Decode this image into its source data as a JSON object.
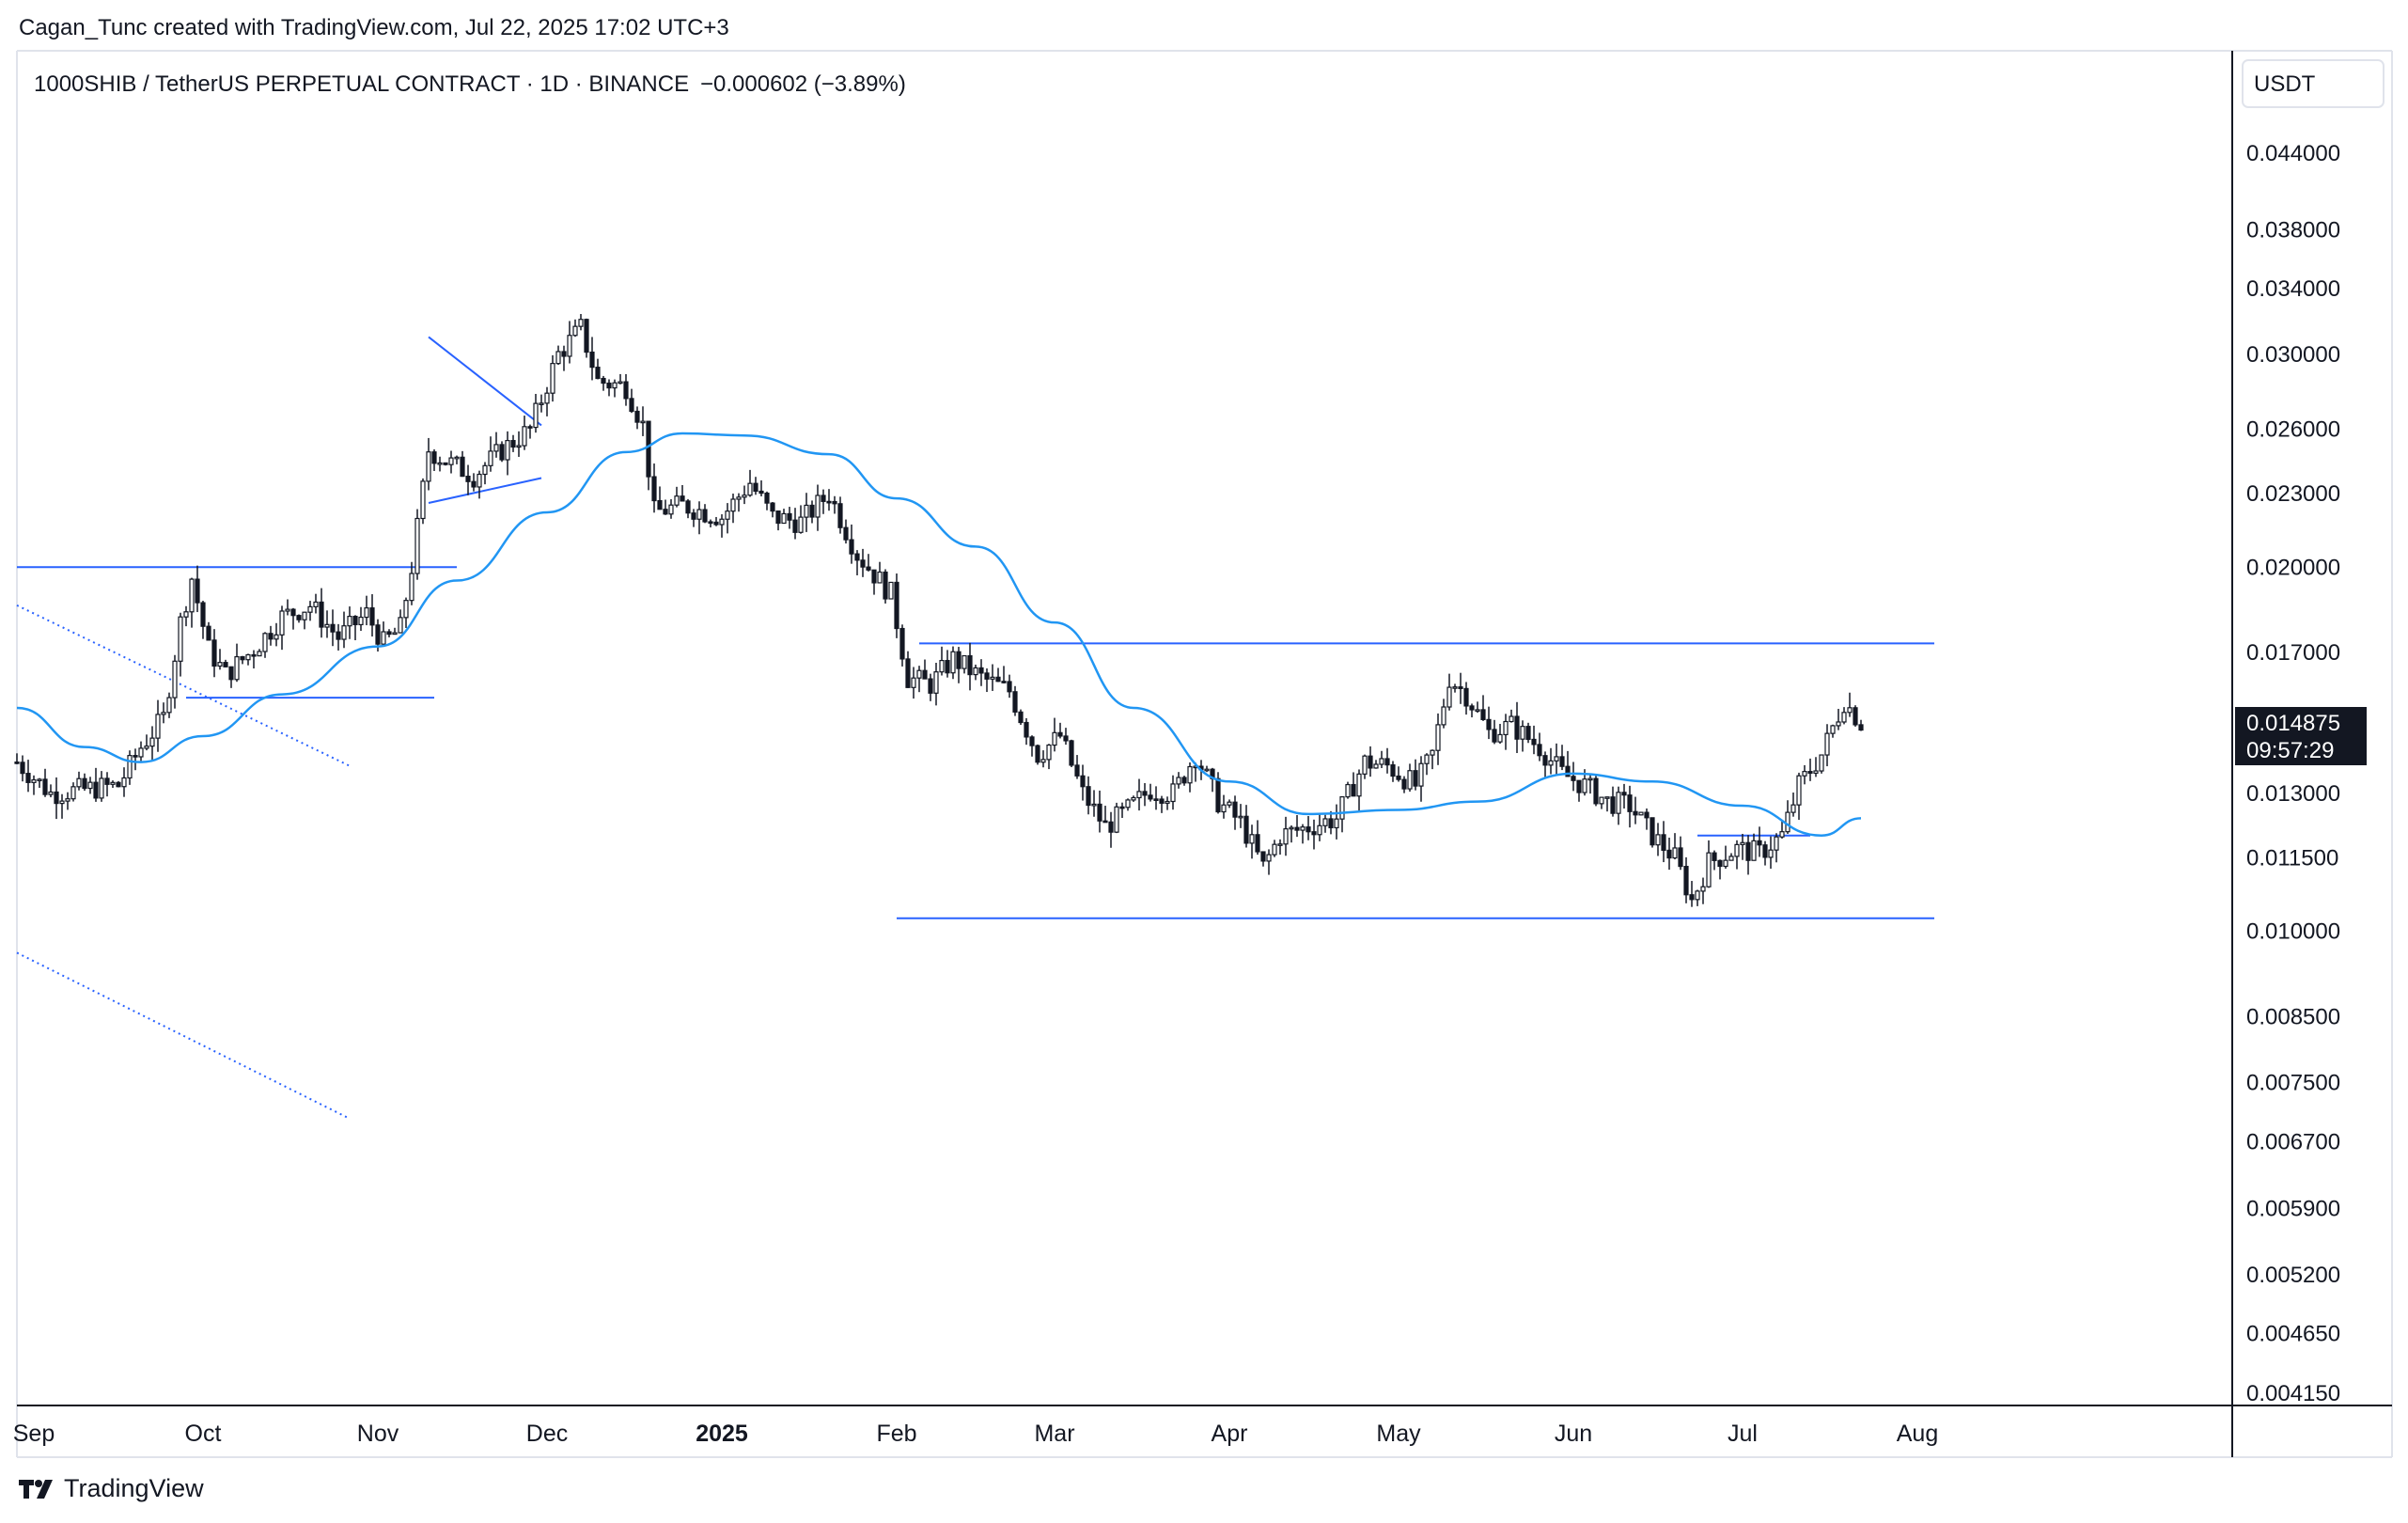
{
  "header": {
    "credit": "Cagan_Tunc created with TradingView.com, Jul 22, 2025 17:02 UTC+3"
  },
  "legend": {
    "symbol": "1000SHIB / TetherUS PERPETUAL CONTRACT · 1D · BINANCE",
    "change": "−0.000602 (−3.89%)"
  },
  "price_axis": {
    "currency": "USDT",
    "last_price": "0.014875",
    "countdown": "09:57:29"
  },
  "footer": {
    "brand": "TradingView",
    "logo_icon": "tradingview-logo-icon"
  },
  "colors": {
    "line": "#2962ff",
    "ma": "#2196f3",
    "candle": "#131722",
    "axis": "#131722"
  },
  "chart_data": {
    "type": "candlestick",
    "scale": "log",
    "interval": "1D",
    "ylim": [
      0.00415,
      0.0475
    ],
    "y_ticks": [
      "0.044000",
      "0.038000",
      "0.034000",
      "0.030000",
      "0.026000",
      "0.023000",
      "0.020000",
      "0.017000",
      "0.013000",
      "0.011500",
      "0.010000",
      "0.008500",
      "0.007500",
      "0.006700",
      "0.005900",
      "0.005200",
      "0.004650",
      "0.004150"
    ],
    "x_ticks": [
      {
        "label": "Sep",
        "date": "2024-09-01"
      },
      {
        "label": "Oct",
        "date": "2024-10-01"
      },
      {
        "label": "Nov",
        "date": "2024-11-01"
      },
      {
        "label": "Dec",
        "date": "2024-12-01"
      },
      {
        "label": "2025",
        "date": "2025-01-01",
        "bold": true
      },
      {
        "label": "Feb",
        "date": "2025-02-01"
      },
      {
        "label": "Mar",
        "date": "2025-03-01"
      },
      {
        "label": "Apr",
        "date": "2025-04-01"
      },
      {
        "label": "May",
        "date": "2025-05-01"
      },
      {
        "label": "Jun",
        "date": "2025-06-01"
      },
      {
        "label": "Jul",
        "date": "2025-07-01"
      },
      {
        "label": "Aug",
        "date": "2025-08-01"
      }
    ],
    "price_anchors": [
      [
        "2024-08-29",
        0.0138
      ],
      [
        "2024-09-04",
        0.013
      ],
      [
        "2024-09-10",
        0.0131
      ],
      [
        "2024-09-16",
        0.0132
      ],
      [
        "2024-09-20",
        0.0142
      ],
      [
        "2024-09-24",
        0.015
      ],
      [
        "2024-09-27",
        0.018
      ],
      [
        "2024-09-29",
        0.0196
      ],
      [
        "2024-10-02",
        0.0171
      ],
      [
        "2024-10-05",
        0.0163
      ],
      [
        "2024-10-10",
        0.0171
      ],
      [
        "2024-10-15",
        0.0182
      ],
      [
        "2024-10-20",
        0.0186
      ],
      [
        "2024-10-25",
        0.0175
      ],
      [
        "2024-10-30",
        0.0183
      ],
      [
        "2024-11-02",
        0.0173
      ],
      [
        "2024-11-05",
        0.0178
      ],
      [
        "2024-11-07",
        0.02
      ],
      [
        "2024-11-10",
        0.025
      ],
      [
        "2024-11-13",
        0.0245
      ],
      [
        "2024-11-18",
        0.0238
      ],
      [
        "2024-11-23",
        0.025
      ],
      [
        "2024-11-28",
        0.026
      ],
      [
        "2024-12-03",
        0.03
      ],
      [
        "2024-12-07",
        0.0315
      ],
      [
        "2024-12-10",
        0.0285
      ],
      [
        "2024-12-15",
        0.0282
      ],
      [
        "2024-12-18",
        0.0262
      ],
      [
        "2024-12-20",
        0.0222
      ],
      [
        "2024-12-25",
        0.0225
      ],
      [
        "2025-01-01",
        0.022
      ],
      [
        "2025-01-06",
        0.0235
      ],
      [
        "2025-01-10",
        0.022
      ],
      [
        "2025-01-15",
        0.0218
      ],
      [
        "2025-01-20",
        0.023
      ],
      [
        "2025-01-25",
        0.0205
      ],
      [
        "2025-01-31",
        0.019
      ],
      [
        "2025-02-03",
        0.0162
      ],
      [
        "2025-02-07",
        0.016
      ],
      [
        "2025-02-11",
        0.0168
      ],
      [
        "2025-02-16",
        0.0162
      ],
      [
        "2025-02-21",
        0.0158
      ],
      [
        "2025-02-26",
        0.014
      ],
      [
        "2025-03-02",
        0.0145
      ],
      [
        "2025-03-06",
        0.013
      ],
      [
        "2025-03-10",
        0.0122
      ],
      [
        "2025-03-14",
        0.0126
      ],
      [
        "2025-03-18",
        0.0131
      ],
      [
        "2025-03-22",
        0.013
      ],
      [
        "2025-03-26",
        0.014
      ],
      [
        "2025-03-30",
        0.0128
      ],
      [
        "2025-04-03",
        0.0123
      ],
      [
        "2025-04-07",
        0.0113
      ],
      [
        "2025-04-10",
        0.012
      ],
      [
        "2025-04-15",
        0.0122
      ],
      [
        "2025-04-20",
        0.0124
      ],
      [
        "2025-04-25",
        0.0138
      ],
      [
        "2025-04-29",
        0.0137
      ],
      [
        "2025-05-04",
        0.0132
      ],
      [
        "2025-05-07",
        0.014
      ],
      [
        "2025-05-10",
        0.0162
      ],
      [
        "2025-05-13",
        0.0157
      ],
      [
        "2025-05-17",
        0.0146
      ],
      [
        "2025-05-21",
        0.0148
      ],
      [
        "2025-05-26",
        0.0142
      ],
      [
        "2025-05-30",
        0.0135
      ],
      [
        "2025-06-03",
        0.0132
      ],
      [
        "2025-06-07",
        0.0128
      ],
      [
        "2025-06-11",
        0.0127
      ],
      [
        "2025-06-15",
        0.012
      ],
      [
        "2025-06-19",
        0.0115
      ],
      [
        "2025-06-22",
        0.0106
      ],
      [
        "2025-06-25",
        0.0114
      ],
      [
        "2025-06-30",
        0.0117
      ],
      [
        "2025-07-04",
        0.0116
      ],
      [
        "2025-07-08",
        0.012
      ],
      [
        "2025-07-11",
        0.0132
      ],
      [
        "2025-07-15",
        0.014
      ],
      [
        "2025-07-19",
        0.0155
      ],
      [
        "2025-07-22",
        0.014875
      ]
    ],
    "moving_average": [
      [
        "2024-08-29",
        0.0153
      ],
      [
        "2024-09-10",
        0.0142
      ],
      [
        "2024-09-20",
        0.0138
      ],
      [
        "2024-10-01",
        0.0145
      ],
      [
        "2024-10-15",
        0.0157
      ],
      [
        "2024-11-01",
        0.0172
      ],
      [
        "2024-11-15",
        0.0195
      ],
      [
        "2024-12-01",
        0.0222
      ],
      [
        "2024-12-15",
        0.0249
      ],
      [
        "2024-12-25",
        0.0258
      ],
      [
        "2025-01-05",
        0.0257
      ],
      [
        "2025-01-20",
        0.0248
      ],
      [
        "2025-02-01",
        0.0228
      ],
      [
        "2025-02-15",
        0.0208
      ],
      [
        "2025-03-01",
        0.018
      ],
      [
        "2025-03-15",
        0.0153
      ],
      [
        "2025-04-01",
        0.0133
      ],
      [
        "2025-04-15",
        0.0125
      ],
      [
        "2025-05-01",
        0.0126
      ],
      [
        "2025-05-15",
        0.0128
      ],
      [
        "2025-06-01",
        0.0135
      ],
      [
        "2025-06-15",
        0.0133
      ],
      [
        "2025-07-01",
        0.0127
      ],
      [
        "2025-07-15",
        0.012
      ],
      [
        "2025-07-22",
        0.0124
      ]
    ],
    "drawings": {
      "horizontal_lines": [
        {
          "y": 0.02,
          "x_from": "2024-08-29",
          "x_to": "2024-11-15"
        },
        {
          "y": 0.0156,
          "x_from": "2024-09-28",
          "x_to": "2024-11-11"
        },
        {
          "y": 0.0173,
          "x_from": "2025-02-05",
          "x_to": "2025-08-04"
        },
        {
          "y": 0.01025,
          "x_from": "2025-02-01",
          "x_to": "2025-08-04"
        },
        {
          "y": 0.012,
          "x_from": "2025-06-23",
          "x_to": "2025-07-13"
        }
      ],
      "trend_lines": [
        {
          "from": [
            "2024-11-10",
            0.031
          ],
          "to": [
            "2024-11-30",
            0.0262
          ]
        },
        {
          "from": [
            "2024-11-10",
            0.0226
          ],
          "to": [
            "2024-11-30",
            0.0237
          ]
        }
      ],
      "dotted_lines": [
        {
          "from": [
            "2024-08-29",
            0.0186
          ],
          "to": [
            "2024-10-27",
            0.0137
          ]
        },
        {
          "from": [
            "2024-08-29",
            0.0096
          ],
          "to": [
            "2024-10-27",
            0.007
          ]
        }
      ]
    }
  }
}
